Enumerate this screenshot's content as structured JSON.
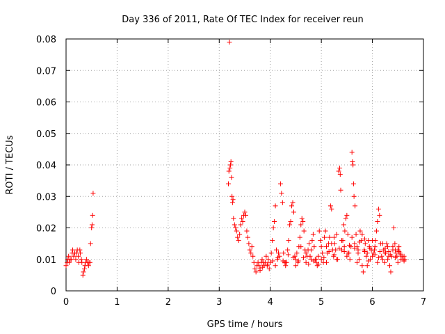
{
  "chart_data": {
    "type": "scatter",
    "title": "Day 336 of 2011, Rate Of TEC Index for receiver reun",
    "xlabel": "GPS time / hours",
    "ylabel": "ROTI / TECUs",
    "xlim": [
      0,
      7
    ],
    "ylim": [
      0,
      0.08
    ],
    "x_ticks": [
      0,
      1,
      2,
      3,
      4,
      5,
      6,
      7
    ],
    "y_ticks": [
      0,
      0.01,
      0.02,
      0.03,
      0.04,
      0.05,
      0.06,
      0.07,
      0.08
    ],
    "x_tick_labels": [
      "0",
      "1",
      "2",
      "3",
      "4",
      "5",
      "6",
      "7"
    ],
    "y_tick_labels": [
      "0",
      "0.01",
      "0.02",
      "0.03",
      "0.04",
      "0.05",
      "0.06",
      "0.07",
      "0.08"
    ],
    "grid": true,
    "marker": "+",
    "series": [
      {
        "name": "ROTI",
        "color": "#ff0000",
        "points": [
          [
            0.0,
            0.008
          ],
          [
            0.02,
            0.009
          ],
          [
            0.03,
            0.01
          ],
          [
            0.05,
            0.011
          ],
          [
            0.06,
            0.009
          ],
          [
            0.08,
            0.01
          ],
          [
            0.1,
            0.01
          ],
          [
            0.12,
            0.012
          ],
          [
            0.13,
            0.013
          ],
          [
            0.15,
            0.011
          ],
          [
            0.17,
            0.012
          ],
          [
            0.19,
            0.01
          ],
          [
            0.2,
            0.012
          ],
          [
            0.22,
            0.013
          ],
          [
            0.24,
            0.011
          ],
          [
            0.25,
            0.009
          ],
          [
            0.27,
            0.013
          ],
          [
            0.28,
            0.012
          ],
          [
            0.3,
            0.01
          ],
          [
            0.31,
            0.009
          ],
          [
            0.33,
            0.005
          ],
          [
            0.34,
            0.006
          ],
          [
            0.36,
            0.007
          ],
          [
            0.37,
            0.008
          ],
          [
            0.38,
            0.009
          ],
          [
            0.4,
            0.01
          ],
          [
            0.42,
            0.009
          ],
          [
            0.44,
            0.008
          ],
          [
            0.45,
            0.009
          ],
          [
            0.47,
            0.009
          ],
          [
            0.48,
            0.015
          ],
          [
            0.5,
            0.02
          ],
          [
            0.51,
            0.021
          ],
          [
            0.52,
            0.024
          ],
          [
            0.53,
            0.031
          ],
          [
            3.18,
            0.034
          ],
          [
            3.19,
            0.038
          ],
          [
            3.2,
            0.079
          ],
          [
            3.21,
            0.039
          ],
          [
            3.22,
            0.04
          ],
          [
            3.23,
            0.041
          ],
          [
            3.24,
            0.036
          ],
          [
            3.25,
            0.03
          ],
          [
            3.26,
            0.028
          ],
          [
            3.27,
            0.029
          ],
          [
            3.28,
            0.023
          ],
          [
            3.3,
            0.021
          ],
          [
            3.32,
            0.02
          ],
          [
            3.34,
            0.019
          ],
          [
            3.36,
            0.017
          ],
          [
            3.38,
            0.016
          ],
          [
            3.4,
            0.018
          ],
          [
            3.42,
            0.021
          ],
          [
            3.44,
            0.023
          ],
          [
            3.46,
            0.022
          ],
          [
            3.48,
            0.024
          ],
          [
            3.5,
            0.025
          ],
          [
            3.52,
            0.024
          ],
          [
            3.54,
            0.019
          ],
          [
            3.56,
            0.017
          ],
          [
            3.58,
            0.015
          ],
          [
            3.6,
            0.013
          ],
          [
            3.62,
            0.012
          ],
          [
            3.64,
            0.014
          ],
          [
            3.66,
            0.011
          ],
          [
            3.68,
            0.009
          ],
          [
            3.7,
            0.007
          ],
          [
            3.72,
            0.006
          ],
          [
            3.74,
            0.008
          ],
          [
            3.76,
            0.009
          ],
          [
            3.78,
            0.008
          ],
          [
            3.8,
            0.007
          ],
          [
            3.82,
            0.009
          ],
          [
            3.84,
            0.01
          ],
          [
            3.86,
            0.009
          ],
          [
            3.88,
            0.008
          ],
          [
            3.9,
            0.009
          ],
          [
            3.92,
            0.011
          ],
          [
            3.94,
            0.008
          ],
          [
            3.96,
            0.01
          ],
          [
            3.98,
            0.007
          ],
          [
            4.0,
            0.009
          ],
          [
            4.02,
            0.012
          ],
          [
            4.04,
            0.016
          ],
          [
            4.06,
            0.02
          ],
          [
            4.08,
            0.022
          ],
          [
            4.1,
            0.027
          ],
          [
            4.12,
            0.013
          ],
          [
            4.14,
            0.01
          ],
          [
            4.16,
            0.012
          ],
          [
            4.18,
            0.011
          ],
          [
            4.2,
            0.034
          ],
          [
            4.22,
            0.031
          ],
          [
            4.24,
            0.028
          ],
          [
            4.26,
            0.012
          ],
          [
            4.28,
            0.009
          ],
          [
            4.3,
            0.008
          ],
          [
            4.32,
            0.009
          ],
          [
            4.34,
            0.013
          ],
          [
            4.36,
            0.016
          ],
          [
            4.38,
            0.021
          ],
          [
            4.4,
            0.022
          ],
          [
            4.42,
            0.027
          ],
          [
            4.44,
            0.028
          ],
          [
            4.46,
            0.025
          ],
          [
            4.48,
            0.011
          ],
          [
            4.5,
            0.01
          ],
          [
            4.52,
            0.012
          ],
          [
            4.54,
            0.009
          ],
          [
            4.56,
            0.014
          ],
          [
            4.58,
            0.017
          ],
          [
            4.6,
            0.021
          ],
          [
            4.62,
            0.023
          ],
          [
            4.64,
            0.022
          ],
          [
            4.66,
            0.019
          ],
          [
            4.68,
            0.013
          ],
          [
            4.7,
            0.012
          ],
          [
            4.72,
            0.011
          ],
          [
            4.74,
            0.013
          ],
          [
            4.76,
            0.015
          ],
          [
            4.78,
            0.011
          ],
          [
            4.8,
            0.01
          ],
          [
            4.82,
            0.016
          ],
          [
            4.84,
            0.018
          ],
          [
            4.86,
            0.014
          ],
          [
            4.88,
            0.01
          ],
          [
            4.9,
            0.009
          ],
          [
            4.92,
            0.008
          ],
          [
            4.94,
            0.011
          ],
          [
            4.96,
            0.019
          ],
          [
            4.98,
            0.016
          ],
          [
            5.0,
            0.01
          ],
          [
            5.02,
            0.012
          ],
          [
            5.04,
            0.009
          ],
          [
            5.06,
            0.017
          ],
          [
            5.08,
            0.019
          ],
          [
            5.1,
            0.014
          ],
          [
            5.12,
            0.012
          ],
          [
            5.14,
            0.015
          ],
          [
            5.16,
            0.017
          ],
          [
            5.18,
            0.027
          ],
          [
            5.2,
            0.026
          ],
          [
            5.22,
            0.013
          ],
          [
            5.24,
            0.011
          ],
          [
            5.26,
            0.015
          ],
          [
            5.28,
            0.013
          ],
          [
            5.3,
            0.018
          ],
          [
            5.32,
            0.01
          ],
          [
            5.34,
            0.038
          ],
          [
            5.36,
            0.039
          ],
          [
            5.37,
            0.037
          ],
          [
            5.38,
            0.032
          ],
          [
            5.4,
            0.013
          ],
          [
            5.42,
            0.016
          ],
          [
            5.44,
            0.021
          ],
          [
            5.46,
            0.019
          ],
          [
            5.48,
            0.023
          ],
          [
            5.5,
            0.024
          ],
          [
            5.52,
            0.018
          ],
          [
            5.54,
            0.012
          ],
          [
            5.56,
            0.01
          ],
          [
            5.58,
            0.014
          ],
          [
            5.6,
            0.044
          ],
          [
            5.61,
            0.041
          ],
          [
            5.62,
            0.04
          ],
          [
            5.63,
            0.034
          ],
          [
            5.64,
            0.03
          ],
          [
            5.66,
            0.027
          ],
          [
            5.68,
            0.018
          ],
          [
            5.7,
            0.014
          ],
          [
            5.72,
            0.012
          ],
          [
            5.74,
            0.01
          ],
          [
            5.76,
            0.019
          ],
          [
            5.78,
            0.016
          ],
          [
            5.8,
            0.008
          ],
          [
            5.82,
            0.006
          ],
          [
            5.84,
            0.013
          ],
          [
            5.86,
            0.015
          ],
          [
            5.88,
            0.011
          ],
          [
            5.9,
            0.012
          ],
          [
            5.92,
            0.016
          ],
          [
            5.94,
            0.014
          ],
          [
            5.96,
            0.01
          ],
          [
            5.98,
            0.013
          ],
          [
            6.0,
            0.011
          ],
          [
            6.02,
            0.012
          ],
          [
            6.04,
            0.013
          ],
          [
            6.06,
            0.016
          ],
          [
            6.08,
            0.019
          ],
          [
            6.1,
            0.022
          ],
          [
            6.12,
            0.026
          ],
          [
            6.14,
            0.024
          ],
          [
            6.16,
            0.015
          ],
          [
            6.18,
            0.011
          ],
          [
            6.2,
            0.01
          ],
          [
            6.22,
            0.013
          ],
          [
            6.24,
            0.009
          ],
          [
            6.26,
            0.012
          ],
          [
            6.28,
            0.015
          ],
          [
            6.3,
            0.014
          ],
          [
            6.32,
            0.011
          ],
          [
            6.34,
            0.008
          ],
          [
            6.36,
            0.006
          ],
          [
            6.38,
            0.011
          ],
          [
            6.4,
            0.013
          ],
          [
            6.42,
            0.02
          ],
          [
            6.44,
            0.015
          ],
          [
            6.46,
            0.012
          ],
          [
            6.48,
            0.011
          ],
          [
            6.5,
            0.013
          ],
          [
            6.52,
            0.014
          ],
          [
            6.54,
            0.012
          ],
          [
            6.56,
            0.01
          ],
          [
            6.58,
            0.011
          ],
          [
            6.6,
            0.01
          ],
          [
            6.62,
            0.011
          ],
          [
            6.64,
            0.01
          ]
        ],
        "cluster_points": [
          [
            3.8,
            0.0065
          ],
          [
            3.85,
            0.0075
          ],
          [
            3.95,
            0.0085
          ],
          [
            4.05,
            0.0095
          ],
          [
            4.15,
            0.0105
          ],
          [
            4.25,
            0.0095
          ],
          [
            4.35,
            0.0115
          ],
          [
            4.45,
            0.0105
          ],
          [
            4.55,
            0.0095
          ],
          [
            4.65,
            0.0105
          ],
          [
            4.75,
            0.0085
          ],
          [
            4.85,
            0.0095
          ],
          [
            4.95,
            0.0085
          ],
          [
            5.05,
            0.0105
          ],
          [
            5.15,
            0.0125
          ],
          [
            5.25,
            0.0115
          ],
          [
            5.35,
            0.0135
          ],
          [
            5.45,
            0.0125
          ],
          [
            5.55,
            0.0145
          ],
          [
            5.65,
            0.0135
          ],
          [
            5.75,
            0.0155
          ],
          [
            5.85,
            0.0125
          ],
          [
            5.95,
            0.0135
          ],
          [
            6.05,
            0.0115
          ],
          [
            6.15,
            0.0125
          ],
          [
            6.25,
            0.0135
          ],
          [
            6.35,
            0.0115
          ],
          [
            6.45,
            0.0105
          ],
          [
            6.55,
            0.0115
          ],
          [
            6.62,
            0.0095
          ],
          [
            4.1,
            0.008
          ],
          [
            4.3,
            0.009
          ],
          [
            4.5,
            0.008
          ],
          [
            4.7,
            0.009
          ],
          [
            4.9,
            0.01
          ],
          [
            5.1,
            0.009
          ],
          [
            5.3,
            0.01
          ],
          [
            5.5,
            0.011
          ],
          [
            5.7,
            0.009
          ],
          [
            5.9,
            0.008
          ],
          [
            6.1,
            0.009
          ],
          [
            6.3,
            0.01
          ],
          [
            6.5,
            0.009
          ],
          [
            5.2,
            0.015
          ],
          [
            5.4,
            0.016
          ],
          [
            5.6,
            0.017
          ],
          [
            5.8,
            0.018
          ],
          [
            6.0,
            0.016
          ],
          [
            6.2,
            0.015
          ],
          [
            6.4,
            0.014
          ],
          [
            5.52,
            0.012
          ],
          [
            5.72,
            0.013
          ],
          [
            5.92,
            0.0095
          ],
          [
            6.12,
            0.0105
          ],
          [
            6.32,
            0.0125
          ],
          [
            6.52,
            0.0125
          ],
          [
            4.6,
            0.014
          ],
          [
            4.8,
            0.013
          ],
          [
            5.0,
            0.014
          ],
          [
            5.25,
            0.017
          ],
          [
            5.45,
            0.014
          ],
          [
            5.65,
            0.015
          ],
          [
            5.85,
            0.0165
          ],
          [
            6.05,
            0.014
          ],
          [
            6.25,
            0.012
          ],
          [
            6.45,
            0.013
          ]
        ]
      }
    ]
  }
}
